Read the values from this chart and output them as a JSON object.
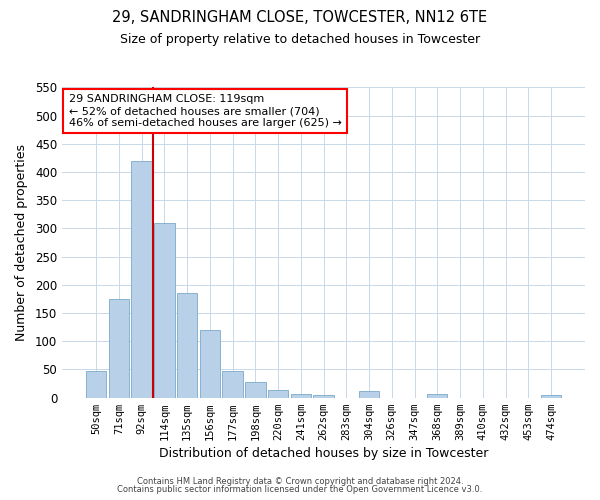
{
  "title": "29, SANDRINGHAM CLOSE, TOWCESTER, NN12 6TE",
  "subtitle": "Size of property relative to detached houses in Towcester",
  "xlabel": "Distribution of detached houses by size in Towcester",
  "ylabel": "Number of detached properties",
  "bar_labels": [
    "50sqm",
    "71sqm",
    "92sqm",
    "114sqm",
    "135sqm",
    "156sqm",
    "177sqm",
    "198sqm",
    "220sqm",
    "241sqm",
    "262sqm",
    "283sqm",
    "304sqm",
    "326sqm",
    "347sqm",
    "368sqm",
    "389sqm",
    "410sqm",
    "432sqm",
    "453sqm",
    "474sqm"
  ],
  "bar_values": [
    47,
    175,
    420,
    310,
    185,
    120,
    47,
    28,
    14,
    7,
    5,
    0,
    11,
    0,
    0,
    7,
    0,
    0,
    0,
    0,
    4
  ],
  "bar_color": "#b8d0e8",
  "bar_edgecolor": "#7aaac8",
  "ylim": [
    0,
    550
  ],
  "yticks": [
    0,
    50,
    100,
    150,
    200,
    250,
    300,
    350,
    400,
    450,
    500,
    550
  ],
  "vline_color": "#cc0000",
  "annotation_box_text": "29 SANDRINGHAM CLOSE: 119sqm\n← 52% of detached houses are smaller (704)\n46% of semi-detached houses are larger (625) →",
  "footer_line1": "Contains HM Land Registry data © Crown copyright and database right 2024.",
  "footer_line2": "Contains public sector information licensed under the Open Government Licence v3.0.",
  "background_color": "#ffffff",
  "grid_color": "#c8d8e8"
}
